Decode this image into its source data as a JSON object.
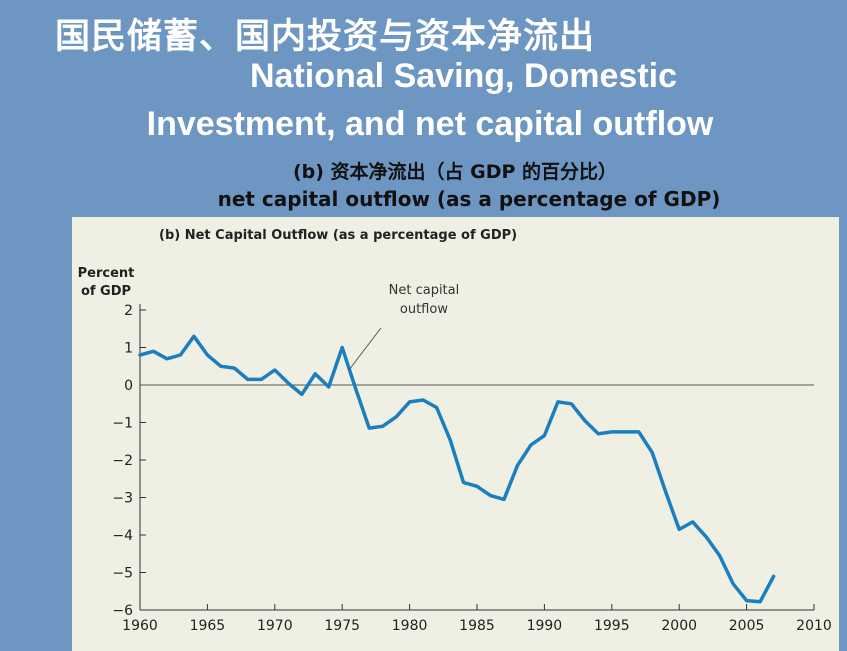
{
  "slide": {
    "title_cn": "国民储蓄、国内投资与资本净流出",
    "title_en_line1": "National Saving, Domestic",
    "title_en_line2": "Investment, and net capital outflow",
    "subtitle_cn": "(b) 资本净流出（占 GDP 的百分比）",
    "subtitle_en": "net capital outflow (as a percentage of GDP)"
  },
  "colors": {
    "background": "#6d97c2",
    "panel": "#efefe3",
    "line": "#1a7fc1",
    "text": "#222222"
  },
  "chart_data": {
    "type": "line",
    "title": "(b) Net Capital Outflow (as a percentage of GDP)",
    "ylabel_line1": "Percent",
    "ylabel_line2": "of GDP",
    "xlim": [
      1960,
      2010
    ],
    "ylim": [
      -6,
      2
    ],
    "x_ticks": [
      1960,
      1965,
      1970,
      1975,
      1980,
      1985,
      1990,
      1995,
      2000,
      2005,
      2010
    ],
    "y_ticks": [
      2,
      1,
      0,
      -1,
      -2,
      -3,
      -4,
      -5,
      -6
    ],
    "zero_line": true,
    "grid": false,
    "annotation": {
      "line1": "Net capital",
      "line2": "outflow",
      "x": 1975.5,
      "y": 0.4
    },
    "series": [
      {
        "name": "Net capital outflow",
        "x": [
          1960,
          1961,
          1962,
          1963,
          1964,
          1965,
          1966,
          1967,
          1968,
          1969,
          1970,
          1971,
          1972,
          1973,
          1974,
          1975,
          1976,
          1977,
          1978,
          1979,
          1980,
          1981,
          1982,
          1983,
          1984,
          1985,
          1986,
          1987,
          1988,
          1989,
          1990,
          1991,
          1992,
          1993,
          1994,
          1995,
          1996,
          1997,
          1998,
          1999,
          2000,
          2001,
          2002,
          2003,
          2004,
          2005,
          2006,
          2007
        ],
        "y": [
          0.8,
          0.9,
          0.7,
          0.8,
          1.3,
          0.8,
          0.5,
          0.45,
          0.15,
          0.15,
          0.4,
          0.05,
          -0.25,
          0.3,
          -0.05,
          1.0,
          -0.1,
          -1.15,
          -1.1,
          -0.85,
          -0.45,
          -0.4,
          -0.6,
          -1.45,
          -2.6,
          -2.7,
          -2.95,
          -3.05,
          -2.15,
          -1.6,
          -1.35,
          -0.45,
          -0.5,
          -0.95,
          -1.3,
          -1.25,
          -1.25,
          -1.25,
          -1.8,
          -2.85,
          -3.85,
          -3.65,
          -4.05,
          -4.55,
          -5.3,
          -5.75,
          -5.78,
          -5.1
        ]
      }
    ]
  }
}
